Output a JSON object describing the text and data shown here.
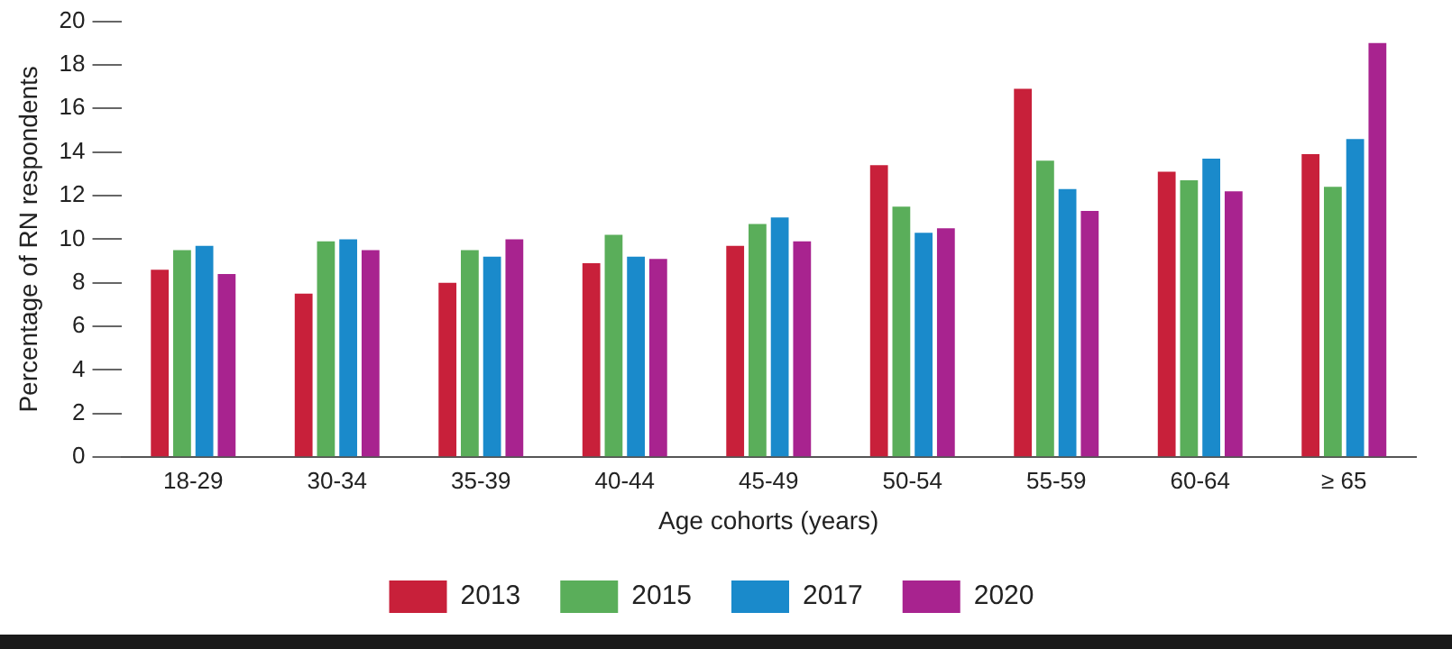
{
  "chart_data": {
    "type": "bar",
    "xlabel": "Age cohorts (years)",
    "ylabel": "Percentage of RN respondents",
    "categories": [
      "18-29",
      "30-34",
      "35-39",
      "40-44",
      "45-49",
      "50-54",
      "55-59",
      "60-64",
      "≥ 65"
    ],
    "series": [
      {
        "name": "2013",
        "color": "#c8203a",
        "values": [
          8.6,
          7.5,
          8.0,
          8.9,
          9.7,
          13.4,
          16.9,
          13.1,
          13.9
        ]
      },
      {
        "name": "2015",
        "color": "#5aae5a",
        "values": [
          9.5,
          9.9,
          9.5,
          10.2,
          10.7,
          11.5,
          13.6,
          12.7,
          12.4
        ]
      },
      {
        "name": "2017",
        "color": "#1a8acb",
        "values": [
          9.7,
          10.0,
          9.2,
          9.2,
          11.0,
          10.3,
          12.3,
          13.7,
          14.6
        ]
      },
      {
        "name": "2020",
        "color": "#a8238f",
        "values": [
          8.4,
          9.5,
          10.0,
          9.1,
          9.9,
          10.5,
          11.3,
          12.2,
          19.0
        ]
      }
    ],
    "ylim": [
      0,
      20
    ],
    "yticks": [
      0,
      2,
      4,
      6,
      8,
      10,
      12,
      14,
      16,
      18,
      20
    ],
    "grid": false,
    "legend": "bottom"
  }
}
